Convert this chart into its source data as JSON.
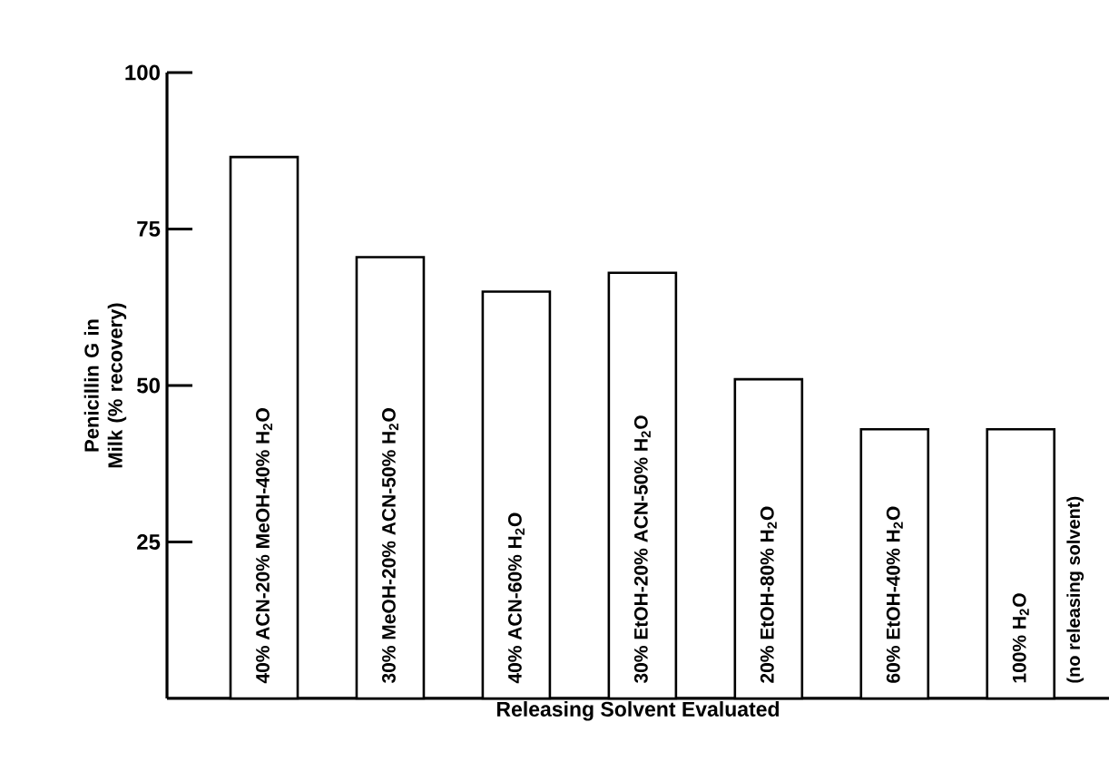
{
  "chart_data": {
    "type": "bar",
    "xlabel": "Releasing Solvent Evaluated",
    "ylabel": "Penicillin G in Milk (% recovery)",
    "categories": [
      "40% ACN-20% MeOH-40% H$_{2}$O",
      "30% MeOH-20% ACN-50% H$_{2}$O",
      "40% ACN-60% H$_{2}$O",
      "30% EtOH-20% ACN-50% H$_{2}$O",
      "20% EtOH-80% H$_{2}$O",
      "60% EtOH-40% H$_{2}$O",
      "100% H$_{2}$O"
    ],
    "values": [
      86.5,
      70.5,
      65,
      68,
      51,
      43,
      43
    ],
    "color": "#ffffff",
    "ylim": [
      0,
      100
    ],
    "yticks": [
      25,
      50,
      75,
      100
    ],
    "annotations": [
      "(no releasing solvent)"
    ]
  }
}
